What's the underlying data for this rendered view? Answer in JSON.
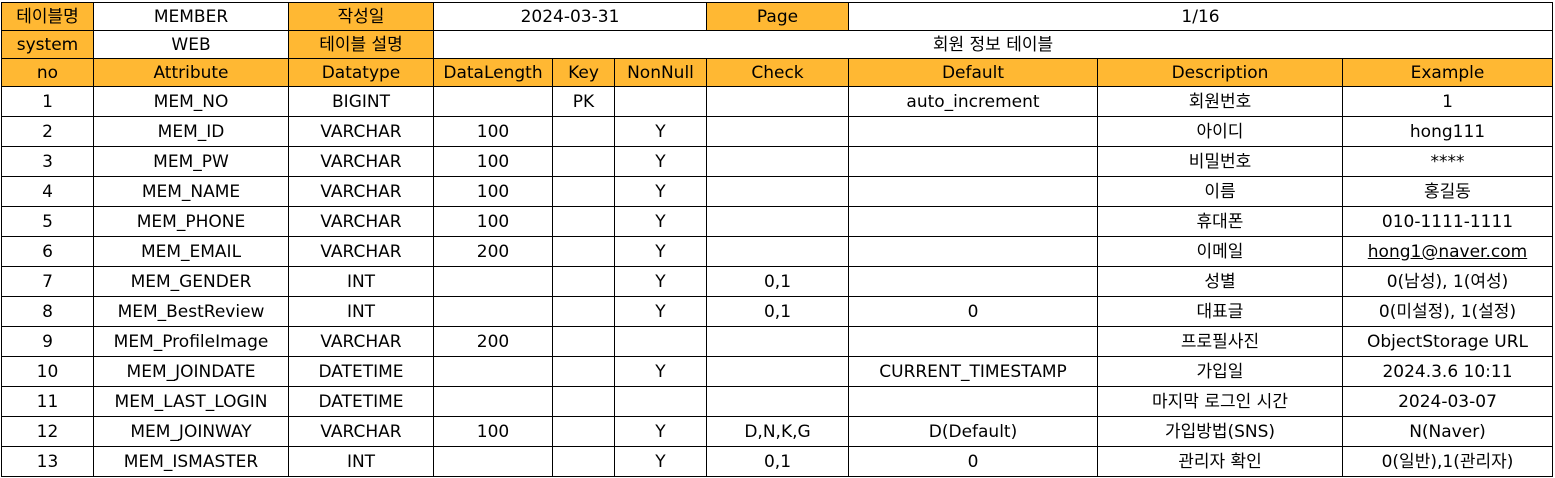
{
  "meta": {
    "table_name_label": "테이블명",
    "table_name_value": "MEMBER",
    "created_label": "작성일",
    "created_value": "2024-03-31",
    "page_label": "Page",
    "page_value": "1/16",
    "system_label": "system",
    "system_value": "WEB",
    "desc_label": "테이블 설명",
    "desc_value": "회원 정보 테이블"
  },
  "columns": [
    "no",
    "Attribute",
    "Datatype",
    "DataLength",
    "Key",
    "NonNull",
    "Check",
    "Default",
    "Description",
    "Example"
  ],
  "rows": [
    [
      "1",
      "MEM_NO",
      "BIGINT",
      "",
      "PK",
      "",
      "",
      "auto_increment",
      "회원번호",
      "1"
    ],
    [
      "2",
      "MEM_ID",
      "VARCHAR",
      "100",
      "",
      "Y",
      "",
      "",
      "아이디",
      "hong111"
    ],
    [
      "3",
      "MEM_PW",
      "VARCHAR",
      "100",
      "",
      "Y",
      "",
      "",
      "비밀번호",
      "****"
    ],
    [
      "4",
      "MEM_NAME",
      "VARCHAR",
      "100",
      "",
      "Y",
      "",
      "",
      "이름",
      "홍길동"
    ],
    [
      "5",
      "MEM_PHONE",
      "VARCHAR",
      "100",
      "",
      "Y",
      "",
      "",
      "휴대폰",
      "010-1111-1111"
    ],
    [
      "6",
      "MEM_EMAIL",
      "VARCHAR",
      "200",
      "",
      "Y",
      "",
      "",
      "이메일",
      "hong1@naver.com"
    ],
    [
      "7",
      "MEM_GENDER",
      "INT",
      "",
      "",
      "Y",
      "0,1",
      "",
      "성별",
      "0(남성), 1(여성)"
    ],
    [
      "8",
      "MEM_BestReview",
      "INT",
      "",
      "",
      "Y",
      "0,1",
      "0",
      "대표글",
      "0(미설정), 1(설정)"
    ],
    [
      "9",
      "MEM_ProfileImage",
      "VARCHAR",
      "200",
      "",
      "",
      "",
      "",
      "프로필사진",
      "ObjectStorage URL"
    ],
    [
      "10",
      "MEM_JOINDATE",
      "DATETIME",
      "",
      "",
      "Y",
      "",
      "CURRENT_TIMESTAMP",
      "가입일",
      "2024.3.6 10:11"
    ],
    [
      "11",
      "MEM_LAST_LOGIN",
      "DATETIME",
      "",
      "",
      "",
      "",
      "",
      "마지막 로그인 시간",
      "2024-03-07"
    ],
    [
      "12",
      "MEM_JOINWAY",
      "VARCHAR",
      "100",
      "",
      "Y",
      "D,N,K,G",
      "D(Default)",
      "가입방법(SNS)",
      "N(Naver)"
    ],
    [
      "13",
      "MEM_ISMASTER",
      "INT",
      "",
      "",
      "Y",
      "0,1",
      "0",
      "관리자 확인",
      "0(일반),1(관리자)"
    ]
  ]
}
